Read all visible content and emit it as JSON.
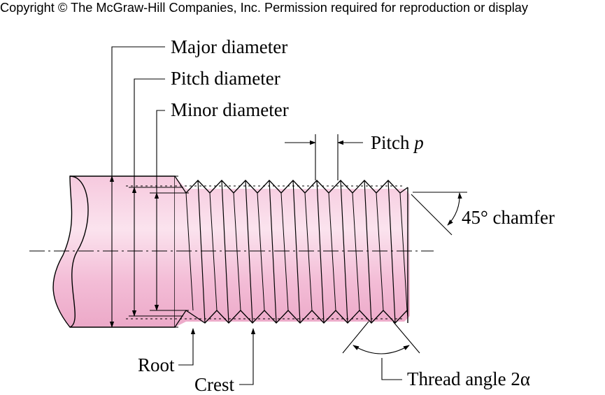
{
  "header": {
    "copyright": "Copyright © The McGraw-Hill Companies, Inc. Permission required for reproduction or display"
  },
  "labels": {
    "major_diameter": "Major diameter",
    "pitch_diameter": "Pitch diameter",
    "minor_diameter": "Minor diameter",
    "pitch": "Pitch",
    "pitch_symbol": "p",
    "chamfer": "45° chamfer",
    "root": "Root",
    "crest": "Crest",
    "thread_angle": "Thread angle 2",
    "thread_angle_symbol": "α"
  },
  "colors": {
    "thread_fill": "#f2b8d2",
    "thread_fill_light": "#f9dcea",
    "shank_fill": "#f3bfd7",
    "ink": "#000000"
  }
}
